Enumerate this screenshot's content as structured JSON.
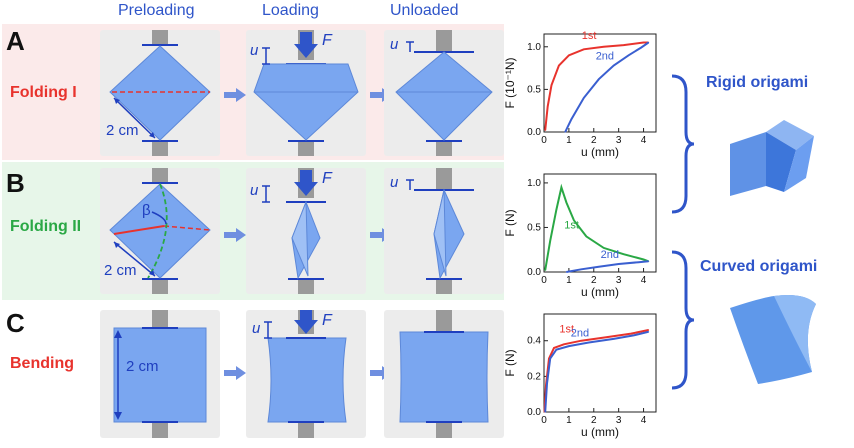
{
  "columns": {
    "preloading": "Preloading",
    "loading": "Loading",
    "unloaded": "Unloaded"
  },
  "rows": [
    {
      "letter": "A",
      "name": "Folding I",
      "name_color": "#e8332d"
    },
    {
      "letter": "B",
      "name": "Folding II",
      "name_color": "#2aa845"
    },
    {
      "letter": "C",
      "name": "Bending",
      "name_color": "#e8332d"
    }
  ],
  "annotations": {
    "scale": "2 cm",
    "u": "u",
    "F": "F",
    "beta": "β"
  },
  "chart_data": [
    {
      "type": "line",
      "xlabel": "u (mm)",
      "ylabel": "F (10⁻¹N)",
      "xlim": [
        0,
        4.5
      ],
      "ylim": [
        0,
        1.15
      ],
      "xticks": [
        "0",
        "1",
        "2",
        "3",
        "4"
      ],
      "yticks": [
        "0.0",
        "0.5",
        "1.0"
      ],
      "series": [
        {
          "name": "1st",
          "color": "#e8332d",
          "points": [
            [
              0.05,
              0.02
            ],
            [
              0.15,
              0.3
            ],
            [
              0.3,
              0.55
            ],
            [
              0.6,
              0.78
            ],
            [
              1.0,
              0.9
            ],
            [
              1.6,
              0.97
            ],
            [
              2.4,
              1.0
            ],
            [
              3.2,
              1.02
            ],
            [
              4.0,
              1.05
            ],
            [
              4.2,
              1.05
            ]
          ]
        },
        {
          "name": "2nd",
          "color": "#3a5fd0",
          "points": [
            [
              0.85,
              0.0
            ],
            [
              1.1,
              0.15
            ],
            [
              1.6,
              0.4
            ],
            [
              2.2,
              0.62
            ],
            [
              2.8,
              0.78
            ],
            [
              3.4,
              0.9
            ],
            [
              3.9,
              0.99
            ],
            [
              4.2,
              1.05
            ]
          ]
        }
      ],
      "labels": {
        "first": "1st",
        "second": "2nd"
      }
    },
    {
      "type": "line",
      "xlabel": "u (mm)",
      "ylabel": "F (N)",
      "xlim": [
        0,
        4.5
      ],
      "ylim": [
        0,
        1.1
      ],
      "xticks": [
        "0",
        "1",
        "2",
        "3",
        "4"
      ],
      "yticks": [
        "0.0",
        "0.5",
        "1.0"
      ],
      "series": [
        {
          "name": "1st",
          "color": "#2aa845",
          "points": [
            [
              0.05,
              0.02
            ],
            [
              0.25,
              0.35
            ],
            [
              0.5,
              0.7
            ],
            [
              0.7,
              0.95
            ],
            [
              0.9,
              0.78
            ],
            [
              1.2,
              0.58
            ],
            [
              1.7,
              0.4
            ],
            [
              2.4,
              0.27
            ],
            [
              3.2,
              0.2
            ],
            [
              4.0,
              0.14
            ],
            [
              4.2,
              0.12
            ]
          ]
        },
        {
          "name": "2nd",
          "color": "#3a5fd0",
          "points": [
            [
              0.9,
              0.0
            ],
            [
              1.5,
              0.03
            ],
            [
              2.2,
              0.06
            ],
            [
              3.0,
              0.09
            ],
            [
              3.8,
              0.11
            ],
            [
              4.2,
              0.12
            ]
          ]
        }
      ],
      "labels": {
        "first": "1st",
        "second": "2nd"
      }
    },
    {
      "type": "line",
      "xlabel": "u (mm)",
      "ylabel": "F (N)",
      "xlim": [
        0,
        4.5
      ],
      "ylim": [
        0,
        0.55
      ],
      "xticks": [
        "0",
        "1",
        "2",
        "3",
        "4"
      ],
      "yticks": [
        "0.0",
        "0.2",
        "0.4"
      ],
      "series": [
        {
          "name": "1st",
          "color": "#e8332d",
          "points": [
            [
              0.02,
              0.0
            ],
            [
              0.08,
              0.15
            ],
            [
              0.2,
              0.3
            ],
            [
              0.4,
              0.36
            ],
            [
              0.8,
              0.38
            ],
            [
              1.5,
              0.4
            ],
            [
              2.5,
              0.42
            ],
            [
              3.5,
              0.44
            ],
            [
              4.2,
              0.46
            ]
          ]
        },
        {
          "name": "2nd",
          "color": "#3a5fd0",
          "points": [
            [
              0.05,
              0.0
            ],
            [
              0.12,
              0.16
            ],
            [
              0.25,
              0.3
            ],
            [
              0.5,
              0.35
            ],
            [
              1.0,
              0.37
            ],
            [
              1.8,
              0.39
            ],
            [
              2.8,
              0.41
            ],
            [
              3.6,
              0.43
            ],
            [
              4.2,
              0.45
            ]
          ]
        }
      ],
      "labels": {
        "first": "1st",
        "second": "2nd"
      }
    }
  ],
  "groups": {
    "rigid": "Rigid origami",
    "curved": "Curved origami"
  }
}
